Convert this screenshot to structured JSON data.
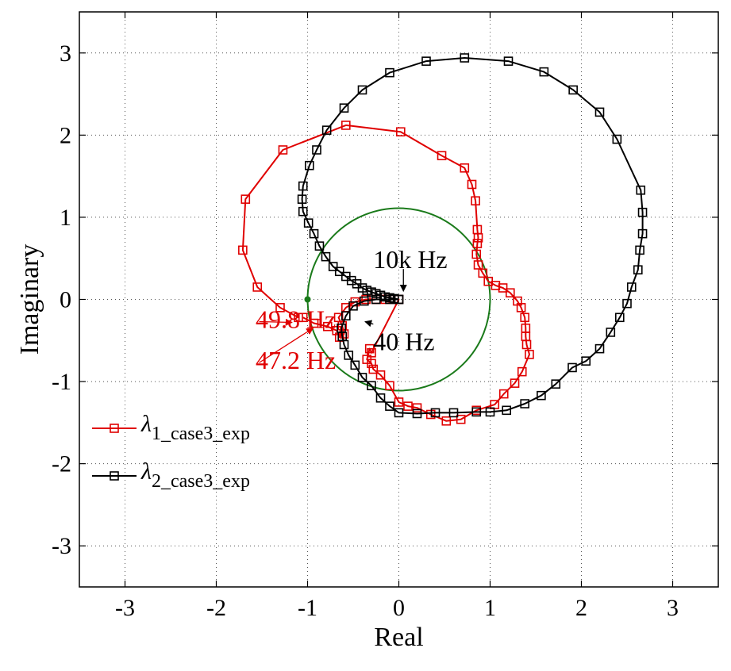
{
  "chart_data": {
    "type": "line",
    "xlabel": "Real",
    "ylabel": "Imaginary",
    "xlim": [
      -3.5,
      3.5
    ],
    "ylim": [
      -3.5,
      3.5
    ],
    "xticks": [
      -3,
      -2,
      -1,
      0,
      1,
      2,
      3
    ],
    "yticks": [
      -3,
      -2,
      -1,
      0,
      1,
      2,
      3
    ],
    "xtick_labels": [
      "-3",
      "-2",
      "-1",
      "0",
      "1",
      "2",
      "3"
    ],
    "ytick_labels": [
      "-3",
      "-2",
      "-1",
      "0",
      "1",
      "2",
      "3"
    ],
    "grid": true,
    "grid_style": "dotted",
    "legend_position": "lower-left",
    "colors": {
      "lambda1": "#e00000",
      "lambda2": "#000000",
      "unit_circle": "#1a7a1a",
      "critical_point": "#1a7a1a"
    },
    "unit_circle": {
      "center": [
        0,
        0
      ],
      "radius": 1
    },
    "critical_point": [
      -1,
      0
    ],
    "series": [
      {
        "legend_symbol": "λ",
        "legend_subscript": "1_case3_exp",
        "color": "#e00000",
        "marker": "square",
        "points": [
          [
            -1.05,
            -0.22
          ],
          [
            -0.93,
            -0.29
          ],
          [
            -0.78,
            -0.33
          ],
          [
            -0.68,
            -0.38
          ],
          [
            -0.65,
            -0.46
          ],
          [
            -0.6,
            -0.42
          ],
          [
            -0.62,
            -0.32
          ],
          [
            -0.66,
            -0.22
          ],
          [
            -0.58,
            -0.1
          ],
          [
            -0.48,
            -0.03
          ],
          [
            -0.36,
            0.0
          ],
          [
            -0.25,
            0.0
          ],
          [
            -0.15,
            0.0
          ],
          [
            -0.05,
            0.0
          ],
          [
            0.0,
            0.0
          ],
          [
            -0.3,
            -0.65
          ],
          [
            -0.32,
            -0.6
          ],
          [
            -0.35,
            -0.73
          ],
          [
            -0.3,
            -0.78
          ],
          [
            -0.28,
            -0.85
          ],
          [
            -0.2,
            -0.92
          ],
          [
            -0.1,
            -1.05
          ],
          [
            0.0,
            -1.25
          ],
          [
            0.1,
            -1.3
          ],
          [
            0.2,
            -1.32
          ],
          [
            0.35,
            -1.4
          ],
          [
            0.52,
            -1.48
          ],
          [
            0.68,
            -1.46
          ],
          [
            0.85,
            -1.35
          ],
          [
            1.05,
            -1.28
          ],
          [
            1.15,
            -1.15
          ],
          [
            1.27,
            -1.02
          ],
          [
            1.35,
            -0.88
          ],
          [
            1.43,
            -0.67
          ],
          [
            1.4,
            -0.55
          ],
          [
            1.39,
            -0.45
          ],
          [
            1.39,
            -0.35
          ],
          [
            1.38,
            -0.22
          ],
          [
            1.34,
            -0.1
          ],
          [
            1.3,
            -0.02
          ],
          [
            1.22,
            0.08
          ],
          [
            1.14,
            0.14
          ],
          [
            1.06,
            0.17
          ],
          [
            0.98,
            0.22
          ],
          [
            0.92,
            0.32
          ],
          [
            0.87,
            0.42
          ],
          [
            0.85,
            0.55
          ],
          [
            0.86,
            0.68
          ],
          [
            0.87,
            0.75
          ],
          [
            0.86,
            0.85
          ],
          [
            0.84,
            1.2
          ],
          [
            0.8,
            1.4
          ],
          [
            0.72,
            1.6
          ],
          [
            0.47,
            1.75
          ],
          [
            0.02,
            2.04
          ],
          [
            -0.58,
            2.12
          ],
          [
            -1.27,
            1.82
          ],
          [
            -1.68,
            1.22
          ],
          [
            -1.71,
            0.6
          ],
          [
            -1.55,
            0.15
          ],
          [
            -1.3,
            -0.1
          ],
          [
            -1.1,
            -0.22
          ]
        ]
      },
      {
        "legend_symbol": "λ",
        "legend_subscript": "2_case3_exp",
        "color": "#000000",
        "marker": "square",
        "points": [
          [
            0.0,
            0.0
          ],
          [
            -0.05,
            0.01
          ],
          [
            -0.1,
            0.02
          ],
          [
            -0.15,
            0.03
          ],
          [
            -0.2,
            0.05
          ],
          [
            -0.25,
            0.07
          ],
          [
            -0.3,
            0.09
          ],
          [
            -0.35,
            0.11
          ],
          [
            -0.4,
            0.14
          ],
          [
            -0.46,
            0.19
          ],
          [
            -0.52,
            0.23
          ],
          [
            -0.58,
            0.28
          ],
          [
            -0.65,
            0.34
          ],
          [
            -0.72,
            0.4
          ],
          [
            -0.8,
            0.52
          ],
          [
            -0.87,
            0.65
          ],
          [
            -0.93,
            0.8
          ],
          [
            -0.99,
            0.93
          ],
          [
            -1.05,
            1.07
          ],
          [
            -1.06,
            1.22
          ],
          [
            -1.05,
            1.38
          ],
          [
            -0.98,
            1.63
          ],
          [
            -0.9,
            1.82
          ],
          [
            -0.79,
            2.06
          ],
          [
            -0.6,
            2.33
          ],
          [
            -0.4,
            2.55
          ],
          [
            -0.1,
            2.76
          ],
          [
            0.3,
            2.9
          ],
          [
            0.72,
            2.94
          ],
          [
            1.2,
            2.9
          ],
          [
            1.59,
            2.77
          ],
          [
            1.91,
            2.55
          ],
          [
            2.2,
            2.28
          ],
          [
            2.39,
            1.95
          ],
          [
            2.65,
            1.33
          ],
          [
            2.67,
            1.06
          ],
          [
            2.67,
            0.8
          ],
          [
            2.64,
            0.6
          ],
          [
            2.62,
            0.36
          ],
          [
            2.55,
            0.15
          ],
          [
            2.5,
            -0.05
          ],
          [
            2.42,
            -0.22
          ],
          [
            2.32,
            -0.4
          ],
          [
            2.2,
            -0.6
          ],
          [
            2.05,
            -0.75
          ],
          [
            1.9,
            -0.83
          ],
          [
            1.72,
            -1.03
          ],
          [
            1.56,
            -1.17
          ],
          [
            1.38,
            -1.27
          ],
          [
            1.18,
            -1.35
          ],
          [
            1.0,
            -1.37
          ],
          [
            0.85,
            -1.37
          ],
          [
            0.6,
            -1.38
          ],
          [
            0.4,
            -1.38
          ],
          [
            0.2,
            -1.39
          ],
          [
            0.0,
            -1.38
          ],
          [
            -0.1,
            -1.3
          ],
          [
            -0.2,
            -1.2
          ],
          [
            -0.3,
            -1.05
          ],
          [
            -0.4,
            -0.95
          ],
          [
            -0.48,
            -0.8
          ],
          [
            -0.55,
            -0.68
          ],
          [
            -0.6,
            -0.55
          ],
          [
            -0.62,
            -0.45
          ],
          [
            -0.63,
            -0.35
          ],
          [
            -0.58,
            -0.2
          ],
          [
            -0.5,
            -0.08
          ],
          [
            -0.38,
            -0.02
          ],
          [
            -0.25,
            0.0
          ],
          [
            -0.1,
            0.0
          ],
          [
            0.0,
            0.0
          ]
        ]
      }
    ],
    "annotations": [
      {
        "text": "10k Hz",
        "color": "#000000",
        "text_at": [
          -0.28,
          0.48
        ],
        "arrow_from": [
          0.05,
          0.37
        ],
        "arrow_to": [
          0.05,
          0.1
        ]
      },
      {
        "text": "40 Hz",
        "color": "#000000",
        "text_at": [
          -0.28,
          -0.52
        ],
        "arrow_from": [
          -0.28,
          -0.3
        ],
        "arrow_to": [
          -0.37,
          -0.27
        ]
      },
      {
        "text": "49.8 Hz",
        "color": "#e00000",
        "text_at": [
          -1.57,
          -0.25
        ],
        "arrow_from": [
          -1.53,
          -0.27
        ],
        "arrow_to": [
          -1.17,
          -0.28
        ]
      },
      {
        "text": "47.2 Hz",
        "color": "#e00000",
        "text_at": [
          -1.57,
          -0.75
        ],
        "arrow_from": [
          -1.53,
          -0.77
        ],
        "arrow_to": [
          -0.94,
          -0.35
        ]
      }
    ]
  }
}
